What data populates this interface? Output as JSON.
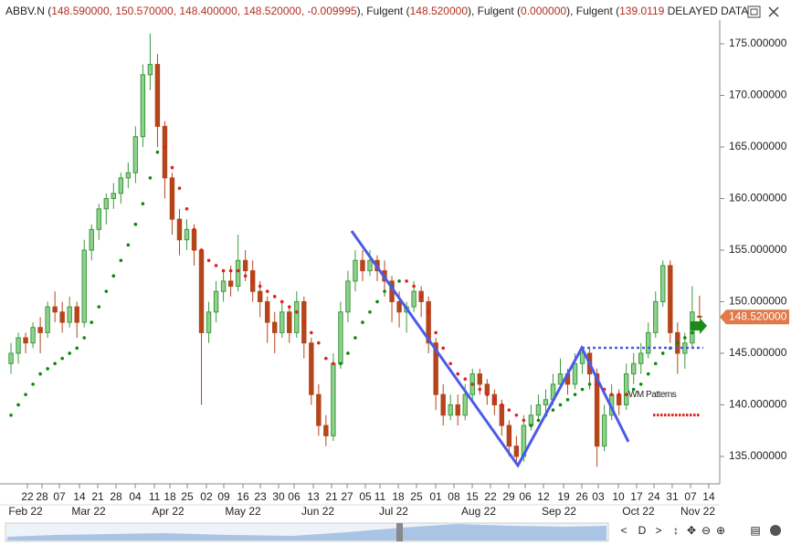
{
  "chart_data": {
    "type": "candlestick",
    "header": [
      {
        "text": "ABBV.N (",
        "color": "#222"
      },
      {
        "text": "148.590000, 150.570000, 148.400000, 148.520000, -0.009995",
        "color": "#b03020"
      },
      {
        "text": "), Fulgent  (",
        "color": "#222"
      },
      {
        "text": "148.520000",
        "color": "#b03020"
      },
      {
        "text": "), Fulgent  (",
        "color": "#222"
      },
      {
        "text": "0.000000",
        "color": "#b03020"
      },
      {
        "text": "), Fulgent  (",
        "color": "#222"
      },
      {
        "text": "139.0119",
        "color": "#b03020"
      },
      {
        "text": "  DELAYED DATA",
        "color": "#222"
      }
    ],
    "up_color": "#8fd18f",
    "down_color": "#b5451b",
    "candles": [
      [
        144,
        146,
        143,
        145
      ],
      [
        145,
        147,
        144,
        146.5
      ],
      [
        146.5,
        147,
        145,
        146
      ],
      [
        146,
        148,
        145.5,
        147.5
      ],
      [
        147.5,
        148.5,
        145,
        147
      ],
      [
        147,
        150,
        146.5,
        149.5
      ],
      [
        149.5,
        151,
        148,
        149
      ],
      [
        149,
        150,
        147,
        148
      ],
      [
        148,
        150.5,
        147.5,
        149.5
      ],
      [
        149.5,
        150,
        146.5,
        148
      ],
      [
        148,
        156,
        147.5,
        155
      ],
      [
        155,
        157.5,
        154,
        157
      ],
      [
        157,
        159.5,
        156,
        159
      ],
      [
        159,
        160.5,
        157.5,
        160
      ],
      [
        160,
        161.5,
        159,
        160.5
      ],
      [
        160.5,
        162.5,
        159.5,
        162
      ],
      [
        162,
        163.5,
        161,
        162.5
      ],
      [
        162.5,
        167,
        161.5,
        166
      ],
      [
        166,
        173,
        165,
        172
      ],
      [
        172,
        176,
        170.5,
        173
      ],
      [
        173,
        174,
        165,
        167
      ],
      [
        167,
        167.5,
        160,
        162
      ],
      [
        162,
        162.5,
        156.5,
        158
      ],
      [
        158,
        159,
        154.5,
        156
      ],
      [
        156,
        158,
        155,
        157
      ],
      [
        157,
        157.5,
        153.5,
        155
      ],
      [
        155,
        155,
        140,
        147
      ],
      [
        147,
        150,
        146,
        149
      ],
      [
        149,
        152,
        148,
        151
      ],
      [
        151,
        153,
        150,
        152
      ],
      [
        152,
        153.5,
        150.5,
        151.5
      ],
      [
        151.5,
        156.5,
        151,
        154
      ],
      [
        154,
        155,
        152,
        153
      ],
      [
        153,
        154,
        150,
        151
      ],
      [
        151,
        152,
        148.5,
        150
      ],
      [
        150,
        150.5,
        146,
        148
      ],
      [
        148,
        149,
        145,
        147
      ],
      [
        147,
        150,
        146.5,
        149
      ],
      [
        149,
        149.5,
        146,
        147
      ],
      [
        147,
        151,
        146.5,
        150
      ],
      [
        150,
        150.5,
        144.5,
        146
      ],
      [
        146,
        146.5,
        140,
        141
      ],
      [
        141,
        142,
        137,
        138
      ],
      [
        138,
        139,
        136,
        137
      ],
      [
        137,
        145,
        136.5,
        144
      ],
      [
        144,
        150,
        143.5,
        149
      ],
      [
        149,
        153,
        148,
        152
      ],
      [
        152,
        155,
        151,
        154
      ],
      [
        154,
        155,
        152,
        153
      ],
      [
        153,
        155,
        152.5,
        154
      ],
      [
        154,
        154.5,
        152,
        153
      ],
      [
        153,
        154,
        150.5,
        152
      ],
      [
        152,
        152.5,
        148,
        150
      ],
      [
        150,
        151,
        147.5,
        149
      ],
      [
        149,
        150,
        147,
        149.5
      ],
      [
        149.5,
        152,
        149,
        151
      ],
      [
        151,
        151.5,
        148.5,
        150
      ],
      [
        150,
        150.5,
        145,
        146
      ],
      [
        146,
        146.5,
        139.5,
        141
      ],
      [
        141,
        142,
        138,
        139
      ],
      [
        139,
        141,
        138.5,
        140
      ],
      [
        140,
        141,
        138,
        139
      ],
      [
        139,
        142,
        138.5,
        141
      ],
      [
        141,
        143.5,
        140.5,
        143
      ],
      [
        143,
        143.5,
        141,
        142
      ],
      [
        142,
        142.5,
        140,
        141
      ],
      [
        141,
        141.5,
        139,
        140
      ],
      [
        140,
        140.5,
        137,
        138
      ],
      [
        138,
        138.5,
        135,
        136
      ],
      [
        136,
        137,
        134.5,
        135
      ],
      [
        135,
        139,
        134.5,
        138
      ],
      [
        138,
        140,
        137.5,
        139
      ],
      [
        139,
        141,
        138.5,
        140
      ],
      [
        140,
        141.5,
        139,
        140.5
      ],
      [
        140.5,
        143,
        140,
        142
      ],
      [
        142,
        144.5,
        141.5,
        143
      ],
      [
        143,
        143.5,
        141,
        142
      ],
      [
        142,
        145,
        141.5,
        144
      ],
      [
        144,
        145.5,
        143,
        145
      ],
      [
        145,
        145.5,
        141.5,
        143
      ],
      [
        143,
        143.5,
        134,
        136
      ],
      [
        136,
        140,
        135.5,
        139
      ],
      [
        139,
        142,
        138.5,
        141
      ],
      [
        141,
        141.5,
        139,
        140
      ],
      [
        140,
        144,
        139.5,
        143
      ],
      [
        143,
        145,
        142,
        144
      ],
      [
        144,
        146,
        143,
        145
      ],
      [
        145,
        148,
        144.5,
        147
      ],
      [
        147,
        151,
        146.5,
        150
      ],
      [
        150,
        154,
        149.5,
        153.5
      ],
      [
        153.5,
        154,
        146,
        147
      ],
      [
        147,
        148,
        143,
        145
      ],
      [
        145,
        147,
        143.5,
        146
      ],
      [
        146,
        151.5,
        145.5,
        149
      ],
      [
        148.59,
        150.57,
        148.4,
        148.52
      ]
    ],
    "series": [
      {
        "color": "#0a8a0a",
        "values": [
          139,
          140,
          141,
          142,
          143,
          143.5,
          144,
          144.5,
          145,
          145.5,
          146.5,
          148,
          149.5,
          151,
          152.5,
          154,
          155.5,
          157.5,
          159.5,
          162,
          164.5,
          null,
          null,
          null,
          null,
          null,
          null,
          null,
          null,
          null,
          null,
          null,
          null,
          null,
          null,
          null,
          null,
          null,
          null,
          null,
          null,
          null,
          null,
          null,
          null,
          144,
          145,
          146.5,
          148,
          149,
          150,
          151,
          151.5,
          152,
          null,
          null,
          null,
          null,
          null,
          null,
          null,
          null,
          null,
          null,
          null,
          null,
          null,
          null,
          null,
          null,
          null,
          138,
          138.5,
          139,
          139.5,
          140,
          140.5,
          141,
          141.5,
          142,
          null,
          null,
          null,
          null,
          null,
          141.5,
          142,
          143,
          144,
          145,
          145.5,
          146,
          146.5,
          147,
          147.5
        ]
      },
      {
        "color": "#e0201b",
        "values": [
          null,
          null,
          null,
          null,
          null,
          null,
          null,
          null,
          null,
          null,
          null,
          null,
          null,
          null,
          null,
          null,
          null,
          null,
          null,
          null,
          null,
          165,
          163,
          161,
          159,
          157,
          155,
          154,
          153.5,
          153,
          153,
          153,
          152.5,
          152,
          151.5,
          151,
          150.5,
          150,
          149.5,
          149,
          148,
          147,
          146,
          144.5,
          144,
          null,
          null,
          null,
          null,
          null,
          null,
          null,
          null,
          null,
          152,
          151.5,
          150.5,
          149,
          147,
          145.5,
          144,
          143,
          142.5,
          142,
          141.5,
          141,
          140.5,
          140,
          139.5,
          139,
          138.5,
          null,
          null,
          null,
          null,
          null,
          null,
          null,
          null,
          null,
          142,
          141.5,
          141,
          141,
          141,
          null,
          null,
          null,
          null,
          null,
          null,
          null,
          null,
          null,
          null
        ]
      }
    ],
    "pattern": {
      "label": "WM Patterns",
      "color": "#4a5be8",
      "zigzag_x": [
        46.5,
        69.2,
        77.93,
        84.29
      ],
      "zigzag_y": [
        156.86,
        134.12,
        145.53,
        136.42
      ],
      "level": 145.53,
      "level_x": [
        77.93,
        94.5
      ],
      "target": 139.0119,
      "target_x": [
        87.66,
        94.14
      ],
      "target_color": "#e0201b"
    },
    "last_price": {
      "value": 148.52,
      "label": "148.520000",
      "color": "#e07a4a"
    },
    "xlim": [
      -1.5,
      96.76
    ],
    "ylim": [
      132.52,
      177.3
    ],
    "yticks": [
      {
        "value": 135,
        "label": "135.000000"
      },
      {
        "value": 140,
        "label": "140.000000"
      },
      {
        "value": 145,
        "label": "145.000000"
      },
      {
        "value": 150,
        "label": "150.000000"
      },
      {
        "value": 155,
        "label": "155.000000"
      },
      {
        "value": 160,
        "label": "160.000000"
      },
      {
        "value": 165,
        "label": "165.000000"
      },
      {
        "value": 170,
        "label": "170.000000"
      },
      {
        "value": 175,
        "label": "175.000000"
      }
    ],
    "xticks": [
      {
        "value": 2.24,
        "label": "22"
      },
      {
        "value": 4.24,
        "label": "28"
      },
      {
        "value": 6.61,
        "label": "07"
      },
      {
        "value": 9.35,
        "label": "14"
      },
      {
        "value": 11.85,
        "label": "21"
      },
      {
        "value": 14.34,
        "label": "28"
      },
      {
        "value": 16.96,
        "label": "04"
      },
      {
        "value": 19.58,
        "label": "11"
      },
      {
        "value": 21.7,
        "label": "18"
      },
      {
        "value": 24.06,
        "label": "25"
      },
      {
        "value": 26.68,
        "label": "02"
      },
      {
        "value": 29.05,
        "label": "09"
      },
      {
        "value": 31.67,
        "label": "16"
      },
      {
        "value": 34.04,
        "label": "23"
      },
      {
        "value": 36.53,
        "label": "30"
      },
      {
        "value": 38.65,
        "label": "06"
      },
      {
        "value": 41.27,
        "label": "13"
      },
      {
        "value": 43.77,
        "label": "21"
      },
      {
        "value": 45.89,
        "label": "27"
      },
      {
        "value": 48.38,
        "label": "05"
      },
      {
        "value": 50.37,
        "label": "11"
      },
      {
        "value": 52.87,
        "label": "18"
      },
      {
        "value": 55.36,
        "label": "25"
      },
      {
        "value": 57.98,
        "label": "01"
      },
      {
        "value": 60.47,
        "label": "08"
      },
      {
        "value": 62.97,
        "label": "15"
      },
      {
        "value": 65.46,
        "label": "22"
      },
      {
        "value": 67.96,
        "label": "29"
      },
      {
        "value": 70.2,
        "label": "06"
      },
      {
        "value": 72.69,
        "label": "12"
      },
      {
        "value": 75.44,
        "label": "19"
      },
      {
        "value": 77.93,
        "label": "26"
      },
      {
        "value": 80.17,
        "label": "03"
      },
      {
        "value": 82.92,
        "label": "10"
      },
      {
        "value": 85.41,
        "label": "17"
      },
      {
        "value": 87.78,
        "label": "24"
      },
      {
        "value": 90.27,
        "label": "31"
      },
      {
        "value": 92.77,
        "label": "07"
      },
      {
        "value": 95.26,
        "label": "14"
      }
    ],
    "months": [
      {
        "value": 2.0,
        "label": "Feb 22"
      },
      {
        "value": 10.6,
        "label": "Mar 22"
      },
      {
        "value": 21.45,
        "label": "Apr 22"
      },
      {
        "value": 31.67,
        "label": "May 22"
      },
      {
        "value": 41.9,
        "label": "Jun 22"
      },
      {
        "value": 52.24,
        "label": "Jul 22"
      },
      {
        "value": 63.84,
        "label": "Aug 22"
      },
      {
        "value": 74.81,
        "label": "Sep 22"
      },
      {
        "value": 85.66,
        "label": "Oct 22"
      },
      {
        "value": 93.77,
        "label": "Nov 22"
      }
    ],
    "toolbar": {
      "period": "D"
    }
  }
}
